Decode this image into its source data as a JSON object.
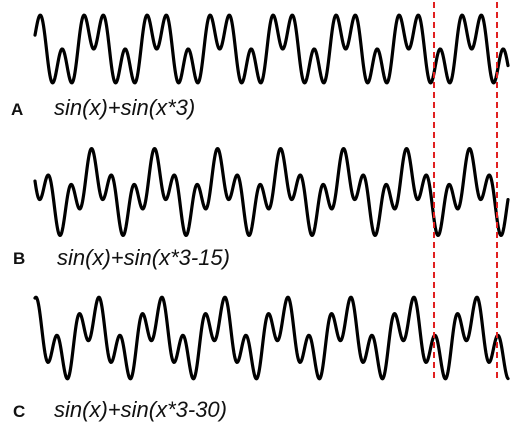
{
  "panels": [
    {
      "letter": "A",
      "formula": "sin(x)+sin(x*3)"
    },
    {
      "letter": "B",
      "formula": "sin(x)+sin(x*3-15)"
    },
    {
      "letter": "C",
      "formula": "sin(x)+sin(x*3-30)"
    }
  ],
  "colors": {
    "wave": "#000000",
    "marker": "#e02020",
    "text": "#111111"
  }
}
